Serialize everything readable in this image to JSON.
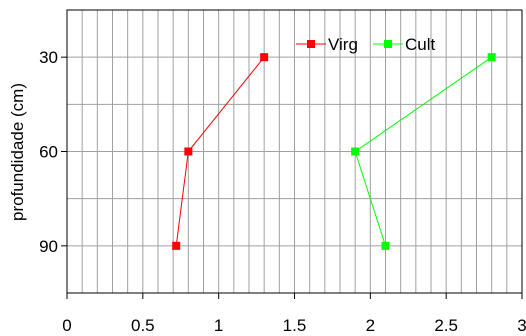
{
  "chart_data": {
    "type": "line",
    "title": "",
    "xlabel": "",
    "ylabel": "profundidade (cm)",
    "xlim": [
      0,
      3
    ],
    "ylim": [
      105,
      15
    ],
    "y_inverted": true,
    "x_ticks": [
      0,
      0.5,
      1,
      1.5,
      2,
      2.5,
      3
    ],
    "x_tick_labels": [
      "0",
      "0.5",
      "1",
      "1.5",
      "2",
      "2.5",
      "3"
    ],
    "x_minor_step": 0.1,
    "y_ticks": [
      30,
      60,
      90
    ],
    "y_tick_labels": [
      "30",
      "60",
      "90"
    ],
    "y_grid_step": 15,
    "x_axis_position": "bottom",
    "grid": true,
    "legend_position": "top-right",
    "series": [
      {
        "name": "Virg",
        "color": "#ff0000",
        "marker": "square",
        "points": [
          {
            "x": 1.3,
            "y": 30
          },
          {
            "x": 0.8,
            "y": 60
          },
          {
            "x": 0.72,
            "y": 90
          }
        ]
      },
      {
        "name": "Cult",
        "color": "#00ff00",
        "marker": "square",
        "points": [
          {
            "x": 2.8,
            "y": 30
          },
          {
            "x": 1.9,
            "y": 60
          },
          {
            "x": 2.1,
            "y": 90
          }
        ]
      }
    ]
  }
}
